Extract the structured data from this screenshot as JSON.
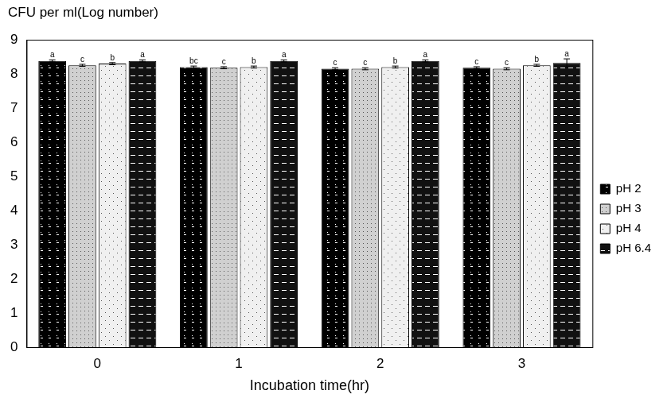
{
  "chart_data": {
    "type": "bar",
    "y_label": "CFU per ml(Log number)",
    "x_label": "Incubation time(hr)",
    "categories": [
      "0",
      "1",
      "2",
      "3"
    ],
    "series": [
      {
        "name": "pH 2",
        "color": "#000000",
        "values": [
          8.38,
          8.2,
          8.15,
          8.18
        ],
        "errors": [
          0.03,
          0.03,
          0.03,
          0.03
        ],
        "letters": [
          "a",
          "bc",
          "c",
          "c"
        ]
      },
      {
        "name": "pH 3",
        "color": "#d0d0d0",
        "values": [
          8.25,
          8.18,
          8.15,
          8.15
        ],
        "errors": [
          0.03,
          0.03,
          0.03,
          0.03
        ],
        "letters": [
          "c",
          "c",
          "c",
          "c"
        ]
      },
      {
        "name": "pH 4",
        "color": "#f0f0f0",
        "values": [
          8.3,
          8.2,
          8.2,
          8.25
        ],
        "errors": [
          0.03,
          0.03,
          0.03,
          0.03
        ],
        "letters": [
          "b",
          "b",
          "b",
          "b"
        ]
      },
      {
        "name": "pH 6.4",
        "color": "#111111",
        "values": [
          8.38,
          8.38,
          8.38,
          8.32
        ],
        "errors": [
          0.03,
          0.03,
          0.03,
          0.12
        ],
        "letters": [
          "a",
          "a",
          "a",
          "a"
        ]
      }
    ],
    "ylim": [
      0,
      9
    ],
    "yticks": [
      0,
      1,
      2,
      3,
      4,
      5,
      6,
      7,
      8,
      9
    ],
    "grid": false,
    "legend": "right"
  }
}
